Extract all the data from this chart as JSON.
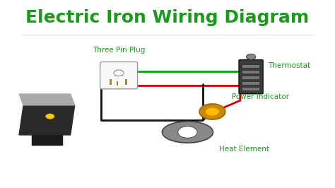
{
  "title": "Electric Iron Wiring Diagram",
  "title_color": "#1a9a1a",
  "title_fontsize": 18,
  "title_weight": "bold",
  "bg_color": "#ffffff",
  "labels": {
    "three_pin_plug": "Three Pin Plug",
    "thermostat": "Thermostat",
    "power_indicator": "Power Indicator",
    "heat_element": "Heat Element"
  },
  "label_color": "#1a9a1a",
  "label_fontsize": 7.5
}
